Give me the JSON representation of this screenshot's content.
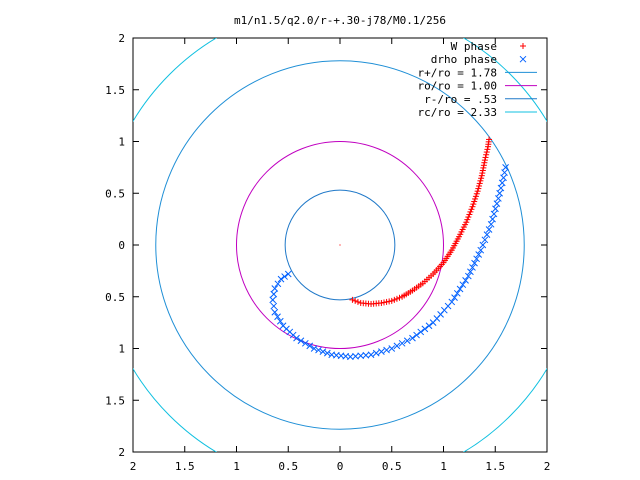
{
  "chart_data": {
    "type": "scatter",
    "title": "m1/n1.5/q2.0/r-+.30-j78/M0.1/256",
    "xlabel": "",
    "ylabel": "",
    "xlim": [
      -2,
      2
    ],
    "ylim": [
      -2,
      2
    ],
    "x_ticks": [
      -2,
      -1.5,
      -1,
      -0.5,
      0,
      0.5,
      1,
      1.5,
      2
    ],
    "y_ticks": [
      -2,
      -1.5,
      -1,
      -0.5,
      0,
      0.5,
      1,
      1.5,
      2
    ],
    "x_tick_labels": [
      "2",
      "1.5",
      "1",
      "0.5",
      "0",
      "0.5",
      "1",
      "1.5",
      "2"
    ],
    "y_tick_labels": [
      "2",
      "1.5",
      "1",
      "0.5",
      "0",
      "0.5",
      "1",
      "1.5",
      "2"
    ],
    "grid": false,
    "legend_position": "top-right",
    "center_point": [
      0,
      0
    ],
    "series": [
      {
        "name": "W phase",
        "marker": "+",
        "color": "#ff0000",
        "points": [
          [
            0.12,
            -0.53
          ],
          [
            0.2,
            -0.56
          ],
          [
            0.3,
            -0.57
          ],
          [
            0.4,
            -0.56
          ],
          [
            0.5,
            -0.54
          ],
          [
            0.6,
            -0.5
          ],
          [
            0.7,
            -0.44
          ],
          [
            0.8,
            -0.37
          ],
          [
            0.9,
            -0.28
          ],
          [
            1.0,
            -0.17
          ],
          [
            1.08,
            -0.05
          ],
          [
            1.15,
            0.08
          ],
          [
            1.22,
            0.22
          ],
          [
            1.28,
            0.37
          ],
          [
            1.33,
            0.52
          ],
          [
            1.37,
            0.67
          ],
          [
            1.4,
            0.82
          ],
          [
            1.43,
            0.95
          ],
          [
            1.44,
            1.02
          ]
        ]
      },
      {
        "name": "drho phase",
        "marker": "x",
        "color": "#0060ff",
        "points": [
          [
            -0.5,
            -0.28
          ],
          [
            -0.57,
            -0.33
          ],
          [
            -0.63,
            -0.42
          ],
          [
            -0.65,
            -0.53
          ],
          [
            -0.63,
            -0.65
          ],
          [
            -0.55,
            -0.78
          ],
          [
            -0.42,
            -0.9
          ],
          [
            -0.25,
            -1.0
          ],
          [
            -0.08,
            -1.06
          ],
          [
            0.1,
            -1.08
          ],
          [
            0.3,
            -1.06
          ],
          [
            0.5,
            -1.0
          ],
          [
            0.7,
            -0.9
          ],
          [
            0.9,
            -0.75
          ],
          [
            1.08,
            -0.55
          ],
          [
            1.24,
            -0.3
          ],
          [
            1.36,
            -0.05
          ],
          [
            1.46,
            0.2
          ],
          [
            1.53,
            0.45
          ],
          [
            1.58,
            0.65
          ],
          [
            1.6,
            0.75
          ]
        ]
      }
    ],
    "circles": [
      {
        "name": "r+/ro = 1.78",
        "radius": 1.78,
        "color": "#1f8fd6"
      },
      {
        "name": "ro/ro = 1.00",
        "radius": 1.0,
        "color": "#c000c0"
      },
      {
        "name": "r-/ro = .53",
        "radius": 0.53,
        "color": "#1f78c8"
      },
      {
        "name": "rc/ro = 2.33",
        "radius": 2.33,
        "color": "#10c0e0"
      }
    ]
  }
}
